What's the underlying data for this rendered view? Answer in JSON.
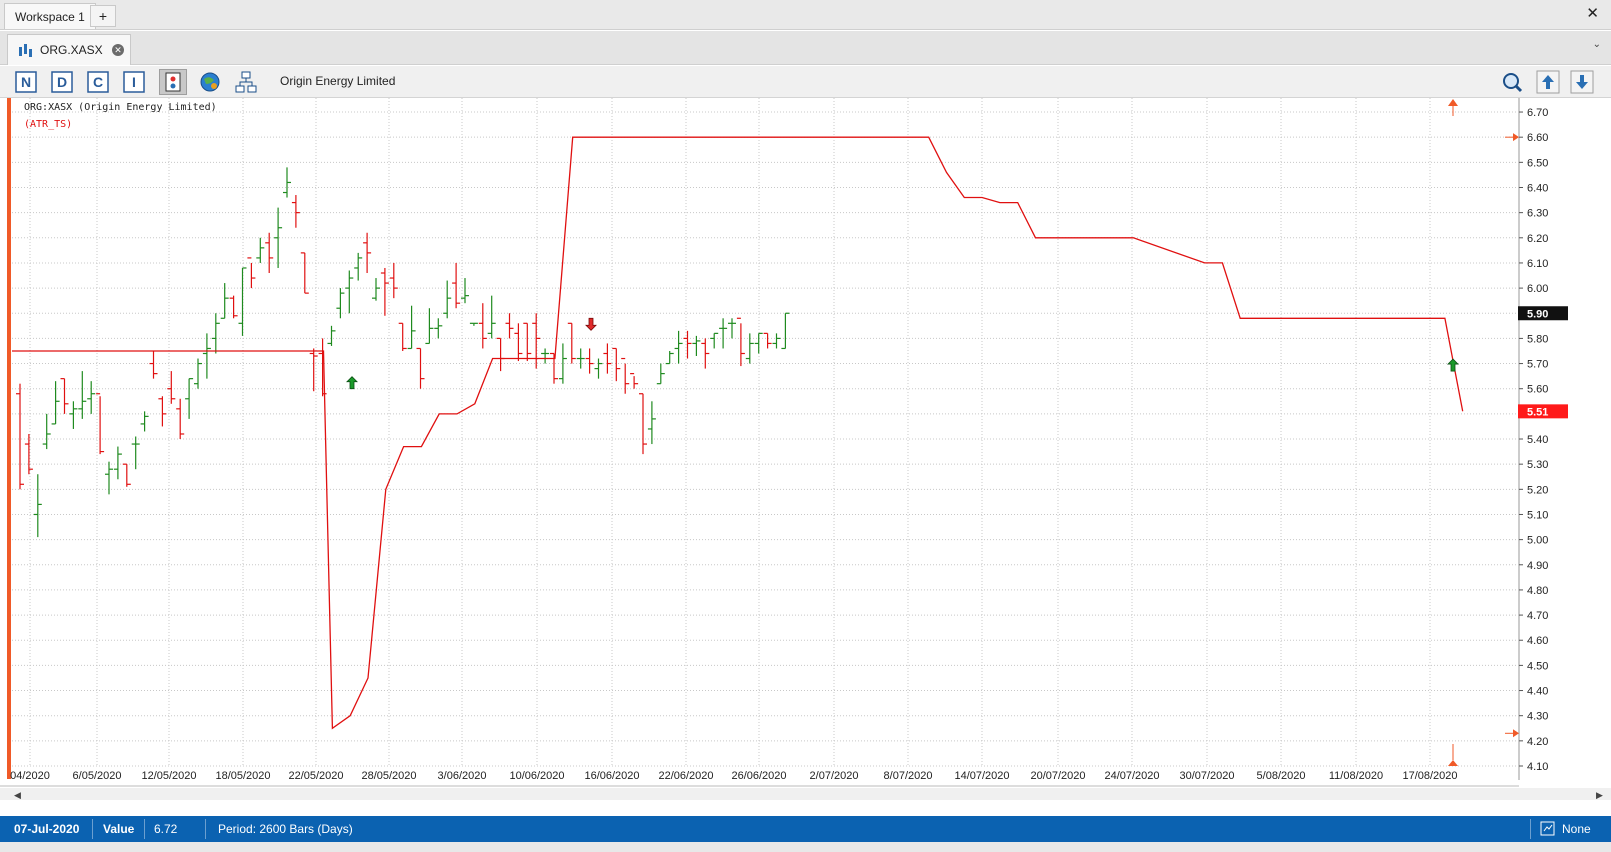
{
  "workspace": {
    "tab_label": "Workspace 1",
    "add_label": "+",
    "close_label": "✕"
  },
  "document": {
    "tab_label": "ORG.XASX",
    "close_label": "✕",
    "menu_label": "⌄"
  },
  "toolbar": {
    "title": "Origin Energy Limited",
    "buttons": [
      {
        "name": "n-button",
        "glyph": "N"
      },
      {
        "name": "d-button",
        "glyph": "D"
      },
      {
        "name": "c-button",
        "glyph": "C"
      },
      {
        "name": "i-button",
        "glyph": "I"
      },
      {
        "name": "indicator-button",
        "glyph": ""
      },
      {
        "name": "globe-button",
        "glyph": ""
      },
      {
        "name": "hierarchy-button",
        "glyph": ""
      }
    ]
  },
  "chart": {
    "legend_symbol": "ORG:XASX (Origin Energy Limited)",
    "legend_indicator": "(ATR_TS)",
    "last_price_label": "5.90",
    "stop_price_label": "5.51"
  },
  "chart_data": {
    "type": "ohlc",
    "ylim": [
      4.1,
      6.72
    ],
    "yticks": [
      "4.10",
      "4.20",
      "4.30",
      "4.40",
      "4.50",
      "4.60",
      "4.70",
      "4.80",
      "4.90",
      "5.00",
      "5.10",
      "5.20",
      "5.30",
      "5.40",
      "5.50",
      "5.60",
      "5.70",
      "5.80",
      "5.90",
      "6.00",
      "6.10",
      "6.20",
      "6.30",
      "6.40",
      "6.50",
      "6.60",
      "6.70"
    ],
    "x_labels": [
      "04/2020",
      "6/05/2020",
      "12/05/2020",
      "18/05/2020",
      "22/05/2020",
      "28/05/2020",
      "3/06/2020",
      "10/06/2020",
      "16/06/2020",
      "22/06/2020",
      "26/06/2020",
      "2/07/2020",
      "8/07/2020",
      "14/07/2020",
      "20/07/2020",
      "24/07/2020",
      "30/07/2020",
      "5/08/2020",
      "11/08/2020",
      "17/08/2020"
    ],
    "grid": true,
    "bars": [
      {
        "o": 5.58,
        "h": 5.62,
        "l": 5.2,
        "c": 5.22
      },
      {
        "o": 5.38,
        "h": 5.42,
        "l": 5.26,
        "c": 5.28
      },
      {
        "o": 5.1,
        "h": 5.26,
        "l": 5.01,
        "c": 5.14
      },
      {
        "o": 5.38,
        "h": 5.5,
        "l": 5.36,
        "c": 5.42
      },
      {
        "o": 5.46,
        "h": 5.63,
        "l": 5.46,
        "c": 5.55
      },
      {
        "o": 5.64,
        "h": 5.64,
        "l": 5.5,
        "c": 5.54
      },
      {
        "o": 5.5,
        "h": 5.55,
        "l": 5.44,
        "c": 5.52
      },
      {
        "o": 5.52,
        "h": 5.67,
        "l": 5.48,
        "c": 5.55
      },
      {
        "o": 5.56,
        "h": 5.63,
        "l": 5.5,
        "c": 5.58
      },
      {
        "o": 5.58,
        "h": 5.57,
        "l": 5.34,
        "c": 5.35
      },
      {
        "o": 5.26,
        "h": 5.31,
        "l": 5.18,
        "c": 5.28
      },
      {
        "o": 5.28,
        "h": 5.37,
        "l": 5.24,
        "c": 5.34
      },
      {
        "o": 5.3,
        "h": 5.3,
        "l": 5.21,
        "c": 5.22
      },
      {
        "o": 5.38,
        "h": 5.41,
        "l": 5.28,
        "c": 5.38
      },
      {
        "o": 5.46,
        "h": 5.51,
        "l": 5.43,
        "c": 5.49
      },
      {
        "o": 5.7,
        "h": 5.75,
        "l": 5.64,
        "c": 5.66
      },
      {
        "o": 5.56,
        "h": 5.57,
        "l": 5.45,
        "c": 5.5
      },
      {
        "o": 5.6,
        "h": 5.67,
        "l": 5.54,
        "c": 5.56
      },
      {
        "o": 5.52,
        "h": 5.56,
        "l": 5.4,
        "c": 5.42
      },
      {
        "o": 5.56,
        "h": 5.64,
        "l": 5.48,
        "c": 5.64
      },
      {
        "o": 5.62,
        "h": 5.72,
        "l": 5.6,
        "c": 5.7
      },
      {
        "o": 5.74,
        "h": 5.82,
        "l": 5.64,
        "c": 5.76
      },
      {
        "o": 5.8,
        "h": 5.9,
        "l": 5.74,
        "c": 5.86
      },
      {
        "o": 5.88,
        "h": 6.02,
        "l": 5.88,
        "c": 5.96
      },
      {
        "o": 5.96,
        "h": 5.97,
        "l": 5.88,
        "c": 5.89
      },
      {
        "o": 5.86,
        "h": 6.08,
        "l": 5.81,
        "c": 6.08
      },
      {
        "o": 6.12,
        "h": 6.1,
        "l": 6.0,
        "c": 6.04
      },
      {
        "o": 6.12,
        "h": 6.2,
        "l": 6.1,
        "c": 6.16
      },
      {
        "o": 6.18,
        "h": 6.22,
        "l": 6.06,
        "c": 6.12
      },
      {
        "o": 6.2,
        "h": 6.32,
        "l": 6.08,
        "c": 6.24
      },
      {
        "o": 6.38,
        "h": 6.48,
        "l": 6.36,
        "c": 6.42
      },
      {
        "o": 6.34,
        "h": 6.37,
        "l": 6.24,
        "c": 6.3
      },
      {
        "o": 6.14,
        "h": 6.14,
        "l": 5.98,
        "c": 5.98
      },
      {
        "o": 5.74,
        "h": 5.76,
        "l": 5.59,
        "c": 5.73
      },
      {
        "o": 5.74,
        "h": 5.8,
        "l": 5.57,
        "c": 5.58
      },
      {
        "o": 5.78,
        "h": 5.85,
        "l": 5.77,
        "c": 5.83
      },
      {
        "o": 5.92,
        "h": 6.0,
        "l": 5.88,
        "c": 5.98
      },
      {
        "o": 6.0,
        "h": 6.07,
        "l": 5.9,
        "c": 6.04
      },
      {
        "o": 6.08,
        "h": 6.14,
        "l": 6.03,
        "c": 6.12
      },
      {
        "o": 6.18,
        "h": 6.22,
        "l": 6.06,
        "c": 6.14
      },
      {
        "o": 5.96,
        "h": 6.04,
        "l": 5.95,
        "c": 6.0
      },
      {
        "o": 6.06,
        "h": 6.08,
        "l": 5.89,
        "c": 6.02
      },
      {
        "o": 6.04,
        "h": 6.1,
        "l": 5.96,
        "c": 6.0
      },
      {
        "o": 5.86,
        "h": 5.86,
        "l": 5.75,
        "c": 5.76
      },
      {
        "o": 5.76,
        "h": 5.93,
        "l": 5.76,
        "c": 5.83
      },
      {
        "o": 5.76,
        "h": 5.76,
        "l": 5.6,
        "c": 5.64
      },
      {
        "o": 5.78,
        "h": 5.92,
        "l": 5.78,
        "c": 5.84
      },
      {
        "o": 5.84,
        "h": 5.88,
        "l": 5.8,
        "c": 5.85
      },
      {
        "o": 5.9,
        "h": 6.03,
        "l": 5.88,
        "c": 5.96
      },
      {
        "o": 6.02,
        "h": 6.1,
        "l": 5.92,
        "c": 5.94
      },
      {
        "o": 5.96,
        "h": 6.04,
        "l": 5.94,
        "c": 5.97
      },
      {
        "o": 5.86,
        "h": 5.86,
        "l": 5.85,
        "c": 5.86
      },
      {
        "o": 5.86,
        "h": 5.94,
        "l": 5.76,
        "c": 5.8
      },
      {
        "o": 5.82,
        "h": 5.97,
        "l": 5.8,
        "c": 5.86
      },
      {
        "o": 5.8,
        "h": 5.8,
        "l": 5.67,
        "c": 5.72
      },
      {
        "o": 5.86,
        "h": 5.9,
        "l": 5.8,
        "c": 5.84
      },
      {
        "o": 5.82,
        "h": 5.86,
        "l": 5.71,
        "c": 5.74
      },
      {
        "o": 5.86,
        "h": 5.86,
        "l": 5.71,
        "c": 5.74
      },
      {
        "o": 5.86,
        "h": 5.9,
        "l": 5.68,
        "c": 5.8
      },
      {
        "o": 5.74,
        "h": 5.76,
        "l": 5.7,
        "c": 5.74
      },
      {
        "o": 5.74,
        "h": 5.74,
        "l": 5.62,
        "c": 5.64
      },
      {
        "o": 5.64,
        "h": 5.78,
        "l": 5.62,
        "c": 5.72
      },
      {
        "o": 5.86,
        "h": 5.86,
        "l": 5.7,
        "c": 5.72
      },
      {
        "o": 5.72,
        "h": 5.76,
        "l": 5.68,
        "c": 5.72
      },
      {
        "o": 5.72,
        "h": 5.76,
        "l": 5.66,
        "c": 5.7
      },
      {
        "o": 5.68,
        "h": 5.72,
        "l": 5.64,
        "c": 5.7
      },
      {
        "o": 5.74,
        "h": 5.78,
        "l": 5.66,
        "c": 5.7
      },
      {
        "o": 5.76,
        "h": 5.76,
        "l": 5.63,
        "c": 5.68
      },
      {
        "o": 5.72,
        "h": 5.7,
        "l": 5.58,
        "c": 5.62
      },
      {
        "o": 5.66,
        "h": 5.65,
        "l": 5.6,
        "c": 5.62
      },
      {
        "o": 5.58,
        "h": 5.58,
        "l": 5.34,
        "c": 5.38
      },
      {
        "o": 5.44,
        "h": 5.55,
        "l": 5.38,
        "c": 5.48
      },
      {
        "o": 5.62,
        "h": 5.7,
        "l": 5.62,
        "c": 5.66
      },
      {
        "o": 5.7,
        "h": 5.75,
        "l": 5.7,
        "c": 5.74
      },
      {
        "o": 5.76,
        "h": 5.83,
        "l": 5.7,
        "c": 5.78
      },
      {
        "o": 5.8,
        "h": 5.83,
        "l": 5.72,
        "c": 5.78
      },
      {
        "o": 5.78,
        "h": 5.81,
        "l": 5.73,
        "c": 5.79
      },
      {
        "o": 5.78,
        "h": 5.8,
        "l": 5.68,
        "c": 5.74
      },
      {
        "o": 5.8,
        "h": 5.82,
        "l": 5.76,
        "c": 5.82
      },
      {
        "o": 5.84,
        "h": 5.88,
        "l": 5.76,
        "c": 5.84
      },
      {
        "o": 5.86,
        "h": 5.88,
        "l": 5.8,
        "c": 5.86
      },
      {
        "o": 5.88,
        "h": 5.86,
        "l": 5.69,
        "c": 5.74
      },
      {
        "o": 5.72,
        "h": 5.82,
        "l": 5.7,
        "c": 5.78
      },
      {
        "o": 5.78,
        "h": 5.82,
        "l": 5.74,
        "c": 5.82
      },
      {
        "o": 5.82,
        "h": 5.82,
        "l": 5.76,
        "c": 5.78
      },
      {
        "o": 5.78,
        "h": 5.82,
        "l": 5.76,
        "c": 5.8
      },
      {
        "o": 5.76,
        "h": 5.9,
        "l": 5.76,
        "c": 5.9
      }
    ],
    "atr_ts": [
      [
        0,
        5.75
      ],
      [
        35,
        5.75
      ],
      [
        36,
        4.25
      ],
      [
        38,
        4.3
      ],
      [
        40,
        4.45
      ],
      [
        42,
        5.2
      ],
      [
        44,
        5.37
      ],
      [
        46,
        5.37
      ],
      [
        48,
        5.5
      ],
      [
        50,
        5.5
      ],
      [
        52,
        5.54
      ],
      [
        54,
        5.72
      ],
      [
        61,
        5.72
      ],
      [
        63,
        6.6
      ],
      [
        103,
        6.6
      ],
      [
        105,
        6.46
      ],
      [
        107,
        6.36
      ],
      [
        109,
        6.36
      ],
      [
        111,
        6.34
      ],
      [
        113,
        6.34
      ],
      [
        115,
        6.2
      ],
      [
        126,
        6.2
      ],
      [
        134,
        6.1
      ],
      [
        136,
        6.1
      ],
      [
        138,
        5.88
      ],
      [
        161,
        5.88
      ],
      [
        163,
        5.51
      ]
    ]
  },
  "status": {
    "date": "07-Jul-2020",
    "value_label": "Value",
    "value": "6.72",
    "period": "Period: 2600 Bars (Days)",
    "none_label": "None"
  },
  "colors": {
    "up": "#1f8a1f",
    "down": "#e01010",
    "atr": "#e01010",
    "status_bg": "#0b62b1",
    "accent": "#f05a28"
  }
}
